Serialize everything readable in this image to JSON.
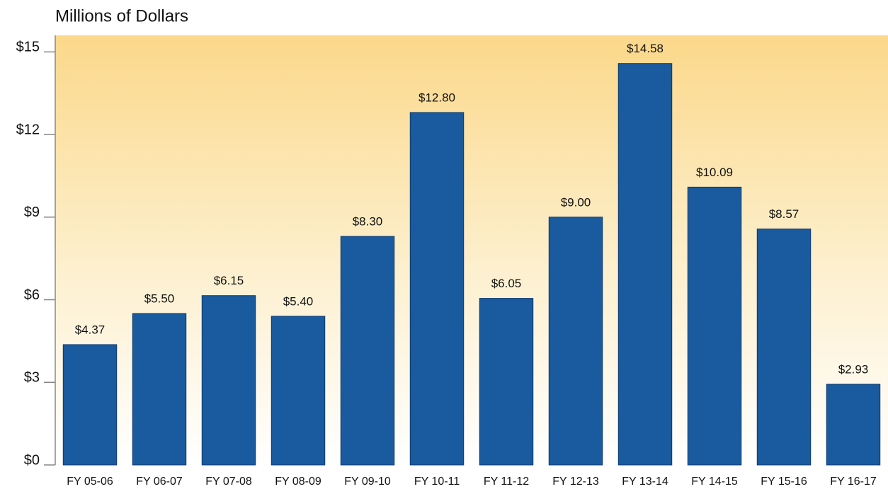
{
  "chart_data": {
    "type": "bar",
    "title": "Millions of Dollars",
    "categories": [
      "FY 05-06",
      "FY 06-07",
      "FY 07-08",
      "FY 08-09",
      "FY 09-10",
      "FY 10-11",
      "FY 11-12",
      "FY 12-13",
      "FY 13-14",
      "FY 14-15",
      "FY 15-16",
      "FY 16-17"
    ],
    "values": [
      4.37,
      5.5,
      6.15,
      5.4,
      8.3,
      12.8,
      6.05,
      9.0,
      14.58,
      10.09,
      8.57,
      2.93
    ],
    "value_labels": [
      "$4.37",
      "$5.50",
      "$6.15",
      "$5.40",
      "$8.30",
      "$12.80",
      "$6.05",
      "$9.00",
      "$14.58",
      "$10.09",
      "$8.57",
      "$2.93"
    ],
    "color": "#1a5a9e",
    "ylim": [
      0,
      15.6
    ],
    "yticks": [
      {
        "value": 0,
        "label": "$0"
      },
      {
        "value": 3,
        "label": "$3"
      },
      {
        "value": 6,
        "label": "$6"
      },
      {
        "value": 9,
        "label": "$9"
      },
      {
        "value": 12,
        "label": "$12"
      },
      {
        "value": 15,
        "label": "$15"
      }
    ],
    "grid": false
  }
}
